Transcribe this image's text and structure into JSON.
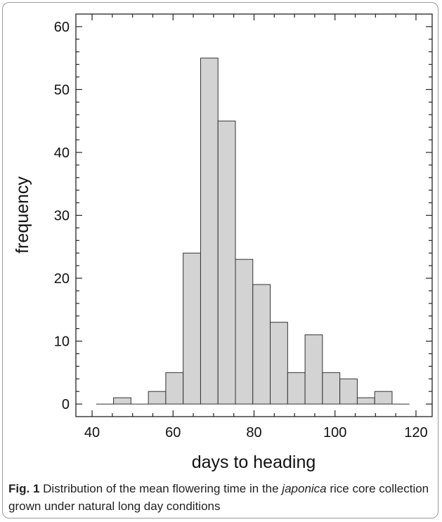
{
  "chart_data": {
    "type": "bar",
    "xlabel": "days to heading",
    "ylabel": "frequency",
    "xlim": [
      36,
      124
    ],
    "ylim": [
      -2,
      62
    ],
    "xticks": [
      40,
      60,
      80,
      100,
      120
    ],
    "yticks": [
      0,
      10,
      20,
      30,
      40,
      50,
      60
    ],
    "bin_width": 4.3,
    "bins": [
      {
        "start": 41.0,
        "value": 0
      },
      {
        "start": 45.3,
        "value": 1
      },
      {
        "start": 49.6,
        "value": 0
      },
      {
        "start": 53.9,
        "value": 2
      },
      {
        "start": 58.2,
        "value": 5
      },
      {
        "start": 62.5,
        "value": 24
      },
      {
        "start": 66.8,
        "value": 55
      },
      {
        "start": 71.1,
        "value": 45
      },
      {
        "start": 75.4,
        "value": 23
      },
      {
        "start": 79.7,
        "value": 19
      },
      {
        "start": 84.0,
        "value": 13
      },
      {
        "start": 88.3,
        "value": 5
      },
      {
        "start": 92.6,
        "value": 11
      },
      {
        "start": 96.9,
        "value": 5
      },
      {
        "start": 101.2,
        "value": 4
      },
      {
        "start": 105.5,
        "value": 1
      },
      {
        "start": 109.8,
        "value": 2
      },
      {
        "start": 114.1,
        "value": 0
      }
    ],
    "bar_fill": "#d3d3d3",
    "bar_stroke": "#333333",
    "grid": false
  },
  "caption": {
    "label": "Fig. 1",
    "text_before": " Distribution of the mean flowering time in the ",
    "italic": "japonica",
    "text_after": " rice core collection grown under natural long day conditions"
  }
}
